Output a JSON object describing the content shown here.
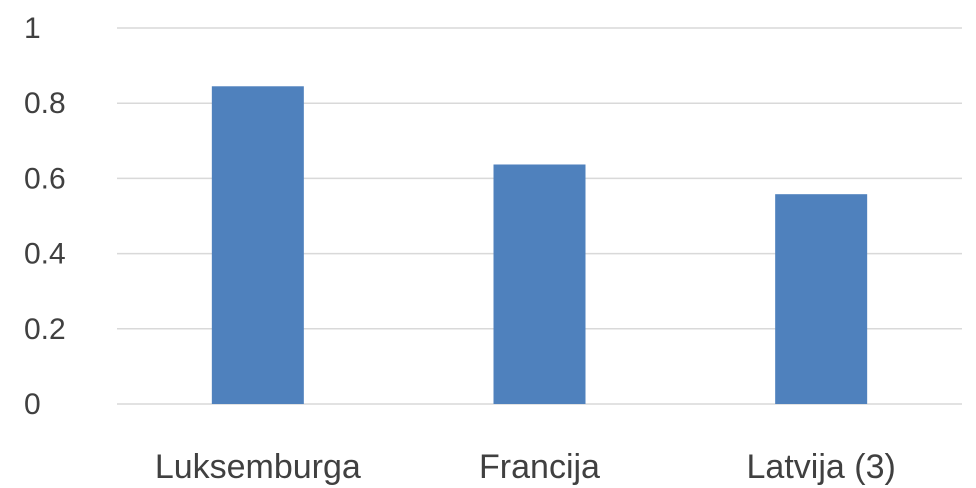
{
  "chart_data": {
    "type": "bar",
    "categories": [
      "Luksemburga",
      "Francija",
      "Latvija (3)"
    ],
    "values": [
      0.845,
      0.637,
      0.558
    ],
    "title": "",
    "xlabel": "",
    "ylabel": "",
    "ylim": [
      0,
      1
    ],
    "yticks": [
      "0",
      "0.2",
      "0.4",
      "0.6",
      "0.8",
      "1"
    ],
    "ytick_values": [
      0,
      0.2,
      0.4,
      0.6,
      0.8,
      1
    ],
    "grid": true,
    "legend": "none",
    "bar_color": "#4f81bd",
    "grid_color": "#d9d9d9",
    "text_color": "#404040"
  }
}
